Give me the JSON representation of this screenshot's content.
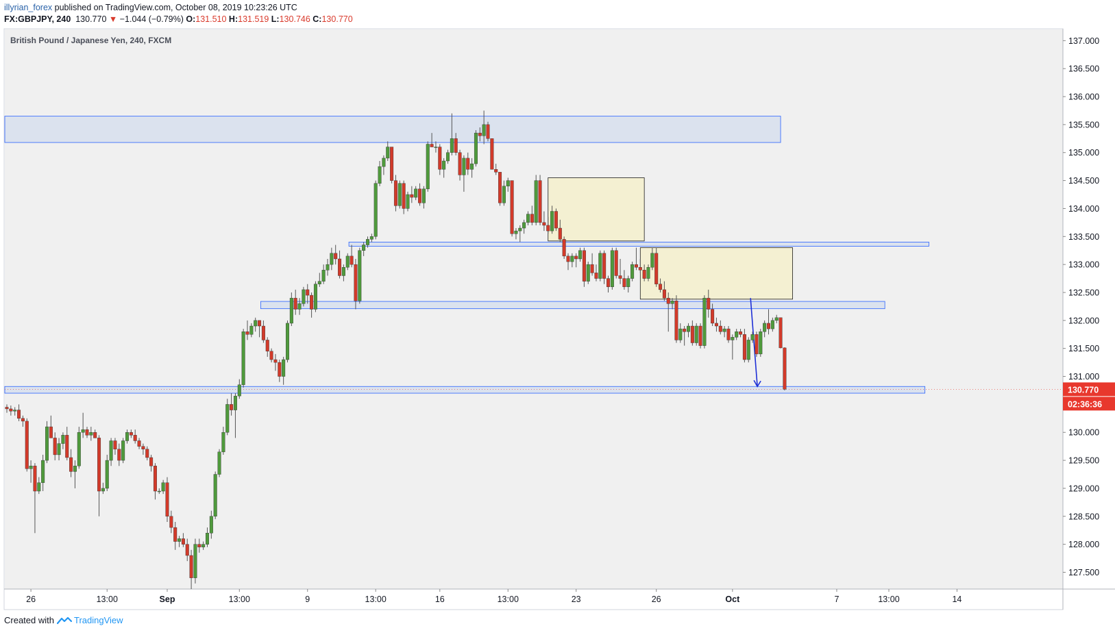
{
  "header": {
    "author": "illyrian_forex",
    "published_text": "published on TradingView.com, October 08, 2019 10:23:26 UTC",
    "symbol": "FX:GBPJPY, 240",
    "last": "130.770",
    "change_arrow": "▼",
    "change": "−1.044 (−0.79%)",
    "o_label": "O:",
    "o_value": "131.510",
    "h_label": "H:",
    "h_value": "131.519",
    "l_label": "L:",
    "l_value": "130.746",
    "c_label": "C:",
    "c_value": "130.770"
  },
  "footer": {
    "created_with": "Created with",
    "brand": "TradingView",
    "logo_icon": "tradingview-logo-icon"
  },
  "colors": {
    "up": "#53b987",
    "down": "#eb4d5c",
    "up_body": "#4f9a3c",
    "down_body": "#d23a2a",
    "zone_blue": "#2962ff",
    "box_yellow": "#f5f0c8",
    "arrow": "#1e2fd6",
    "price_tag": "#e8382d"
  },
  "chart_data": {
    "type": "candlestick",
    "title": "British Pound / Japanese Yen, 240, FXCM",
    "ylim": [
      127.2,
      137.2
    ],
    "y_ticks": [
      "137.000",
      "136.500",
      "136.000",
      "135.500",
      "135.000",
      "134.500",
      "134.000",
      "133.500",
      "133.000",
      "132.500",
      "132.000",
      "131.500",
      "131.000",
      "130.500",
      "130.000",
      "129.500",
      "129.000",
      "128.500",
      "128.000",
      "127.500"
    ],
    "x_ticks": [
      "26",
      "13:00",
      "Sep",
      "13:00",
      "9",
      "13:00",
      "16",
      "13:00",
      "23",
      "26",
      "Oct",
      "7",
      "13:00",
      "14"
    ],
    "last_price": "130.770",
    "countdown": "02:36:36",
    "zones": [
      {
        "name": "resistance-zone-top",
        "low": 135.18,
        "high": 135.65
      },
      {
        "name": "zone-133-4",
        "low": 133.33,
        "high": 133.4
      },
      {
        "name": "zone-132-3",
        "low": 132.21,
        "high": 132.34
      },
      {
        "name": "support-zone-130-8",
        "low": 130.7,
        "high": 130.82
      }
    ],
    "boxes": [
      {
        "name": "consolidation-box-1",
        "low": 133.42,
        "high": 134.55
      },
      {
        "name": "consolidation-box-2",
        "low": 132.38,
        "high": 133.3
      }
    ],
    "candles": [
      [
        130.45,
        130.5,
        130.35,
        130.42
      ],
      [
        130.42,
        130.48,
        130.3,
        130.38
      ],
      [
        130.38,
        130.45,
        130.3,
        130.4
      ],
      [
        130.4,
        130.5,
        130.2,
        130.25
      ],
      [
        130.25,
        130.3,
        130.1,
        130.2
      ],
      [
        130.2,
        130.25,
        129.3,
        129.35
      ],
      [
        129.35,
        129.5,
        129.1,
        129.4
      ],
      [
        129.4,
        129.45,
        128.2,
        128.95
      ],
      [
        128.95,
        129.2,
        128.9,
        129.1
      ],
      [
        129.1,
        129.6,
        128.95,
        129.5
      ],
      [
        129.5,
        130.2,
        129.45,
        130.1
      ],
      [
        130.1,
        130.3,
        129.9,
        129.9
      ],
      [
        129.9,
        130.0,
        129.5,
        129.6
      ],
      [
        129.6,
        129.9,
        129.5,
        129.8
      ],
      [
        129.8,
        130.0,
        129.7,
        129.95
      ],
      [
        129.95,
        130.1,
        129.5,
        129.55
      ],
      [
        129.55,
        129.7,
        129.2,
        129.3
      ],
      [
        129.3,
        129.5,
        129.0,
        129.4
      ],
      [
        129.4,
        130.1,
        129.35,
        130.0
      ],
      [
        130.0,
        130.35,
        129.9,
        130.05
      ],
      [
        130.05,
        130.1,
        129.9,
        129.95
      ],
      [
        129.95,
        130.1,
        129.85,
        130.0
      ],
      [
        130.0,
        130.05,
        129.9,
        129.9
      ],
      [
        129.9,
        129.95,
        128.5,
        128.95
      ],
      [
        128.95,
        129.1,
        128.9,
        129.0
      ],
      [
        129.0,
        129.6,
        128.95,
        129.5
      ],
      [
        129.5,
        129.9,
        129.4,
        129.85
      ],
      [
        129.85,
        129.9,
        129.6,
        129.7
      ],
      [
        129.7,
        129.8,
        129.4,
        129.5
      ],
      [
        129.5,
        129.9,
        129.45,
        129.85
      ],
      [
        129.85,
        130.05,
        129.8,
        130.0
      ],
      [
        130.0,
        130.05,
        129.9,
        129.95
      ],
      [
        129.95,
        130.05,
        129.8,
        129.85
      ],
      [
        129.85,
        129.9,
        129.7,
        129.75
      ],
      [
        129.75,
        129.8,
        129.6,
        129.7
      ],
      [
        129.7,
        129.75,
        129.5,
        129.55
      ],
      [
        129.55,
        129.6,
        129.3,
        129.4
      ],
      [
        129.4,
        129.45,
        128.8,
        128.95
      ],
      [
        128.95,
        129.0,
        128.9,
        128.95
      ],
      [
        128.95,
        129.15,
        128.9,
        129.1
      ],
      [
        129.1,
        129.2,
        128.4,
        128.5
      ],
      [
        128.5,
        128.6,
        128.2,
        128.3
      ],
      [
        128.3,
        128.4,
        127.9,
        128.05
      ],
      [
        128.05,
        128.15,
        127.95,
        128.1
      ],
      [
        128.1,
        128.2,
        127.95,
        128.0
      ],
      [
        128.0,
        128.1,
        127.7,
        127.8
      ],
      [
        127.8,
        127.9,
        127.2,
        127.4
      ],
      [
        127.4,
        128.1,
        127.3,
        128.0
      ],
      [
        128.0,
        128.1,
        127.85,
        127.95
      ],
      [
        127.95,
        128.05,
        127.9,
        128.0
      ],
      [
        128.0,
        128.3,
        127.95,
        128.2
      ],
      [
        128.2,
        128.6,
        128.1,
        128.5
      ],
      [
        128.5,
        129.3,
        128.45,
        129.25
      ],
      [
        129.25,
        129.7,
        129.2,
        129.65
      ],
      [
        129.65,
        130.1,
        129.6,
        130.0
      ],
      [
        130.0,
        130.6,
        129.95,
        130.5
      ],
      [
        130.5,
        130.7,
        130.3,
        130.4
      ],
      [
        130.4,
        130.7,
        129.9,
        130.65
      ],
      [
        130.65,
        130.95,
        130.6,
        130.85
      ],
      [
        130.85,
        131.85,
        130.8,
        131.8
      ],
      [
        131.8,
        132.0,
        131.65,
        131.75
      ],
      [
        131.75,
        131.95,
        131.7,
        131.9
      ],
      [
        131.9,
        132.05,
        131.8,
        132.0
      ],
      [
        132.0,
        132.0,
        131.7,
        131.9
      ],
      [
        131.9,
        132.0,
        131.6,
        131.65
      ],
      [
        131.65,
        131.7,
        131.35,
        131.45
      ],
      [
        131.45,
        131.5,
        131.25,
        131.3
      ],
      [
        131.3,
        131.4,
        131.1,
        131.25
      ],
      [
        131.25,
        131.3,
        130.9,
        131.0
      ],
      [
        131.0,
        131.35,
        130.85,
        131.3
      ],
      [
        131.3,
        132.0,
        131.25,
        131.95
      ],
      [
        131.95,
        132.5,
        131.9,
        132.4
      ],
      [
        132.4,
        132.55,
        132.1,
        132.2
      ],
      [
        132.2,
        132.4,
        132.1,
        132.3
      ],
      [
        132.3,
        132.6,
        132.25,
        132.55
      ],
      [
        132.55,
        132.65,
        132.3,
        132.45
      ],
      [
        132.45,
        132.5,
        132.05,
        132.2
      ],
      [
        132.2,
        132.7,
        132.15,
        132.65
      ],
      [
        132.65,
        132.85,
        132.6,
        132.7
      ],
      [
        132.7,
        133.0,
        132.65,
        132.9
      ],
      [
        132.9,
        133.1,
        132.8,
        133.0
      ],
      [
        133.0,
        133.3,
        132.9,
        133.2
      ],
      [
        133.2,
        133.35,
        133.0,
        133.1
      ],
      [
        133.1,
        133.25,
        132.75,
        132.8
      ],
      [
        132.8,
        133.0,
        132.7,
        132.95
      ],
      [
        132.95,
        133.2,
        132.9,
        133.15
      ],
      [
        133.15,
        133.35,
        132.95,
        133.0
      ],
      [
        133.0,
        133.1,
        132.2,
        132.35
      ],
      [
        132.35,
        133.3,
        132.3,
        133.25
      ],
      [
        133.25,
        133.4,
        133.15,
        133.35
      ],
      [
        133.35,
        133.5,
        133.3,
        133.45
      ],
      [
        133.45,
        133.55,
        133.4,
        133.5
      ],
      [
        133.5,
        134.5,
        133.45,
        134.45
      ],
      [
        134.45,
        134.85,
        134.4,
        134.75
      ],
      [
        134.75,
        134.95,
        134.6,
        134.9
      ],
      [
        134.9,
        135.2,
        134.85,
        135.1
      ],
      [
        135.1,
        135.1,
        134.45,
        134.5
      ],
      [
        134.5,
        134.6,
        133.95,
        134.05
      ],
      [
        134.05,
        134.5,
        134.0,
        134.45
      ],
      [
        134.45,
        134.5,
        133.9,
        134.0
      ],
      [
        134.0,
        134.3,
        133.95,
        134.25
      ],
      [
        134.25,
        134.4,
        134.1,
        134.2
      ],
      [
        134.2,
        134.4,
        134.15,
        134.35
      ],
      [
        134.35,
        134.45,
        134.05,
        134.1
      ],
      [
        134.1,
        134.4,
        134.0,
        134.35
      ],
      [
        134.35,
        135.2,
        134.3,
        135.15
      ],
      [
        135.15,
        135.35,
        135.1,
        135.1
      ],
      [
        135.1,
        135.2,
        135.0,
        135.1
      ],
      [
        135.1,
        135.15,
        134.6,
        134.7
      ],
      [
        134.7,
        134.9,
        134.55,
        134.85
      ],
      [
        134.85,
        135.05,
        134.8,
        135.0
      ],
      [
        135.0,
        135.7,
        134.95,
        135.25
      ],
      [
        135.25,
        135.35,
        134.95,
        135.0
      ],
      [
        135.0,
        135.05,
        134.5,
        134.6
      ],
      [
        134.6,
        134.95,
        134.3,
        134.9
      ],
      [
        134.9,
        135.0,
        134.6,
        134.7
      ],
      [
        134.7,
        134.9,
        134.55,
        134.8
      ],
      [
        134.8,
        135.4,
        134.75,
        135.35
      ],
      [
        135.35,
        135.45,
        135.2,
        135.3
      ],
      [
        135.3,
        135.75,
        135.15,
        135.5
      ],
      [
        135.5,
        135.55,
        135.2,
        135.25
      ],
      [
        135.25,
        135.25,
        134.7,
        134.7
      ],
      [
        134.7,
        134.8,
        134.6,
        134.65
      ],
      [
        134.65,
        134.65,
        134.05,
        134.1
      ],
      [
        134.1,
        134.5,
        134.05,
        134.4
      ],
      [
        134.4,
        134.55,
        134.3,
        134.5
      ],
      [
        134.5,
        134.5,
        133.5,
        133.55
      ],
      [
        133.55,
        133.65,
        133.45,
        133.6
      ],
      [
        133.6,
        133.7,
        133.4,
        133.65
      ],
      [
        133.65,
        133.8,
        133.55,
        133.75
      ],
      [
        133.75,
        133.95,
        133.7,
        133.9
      ],
      [
        133.9,
        134.05,
        133.7,
        133.75
      ],
      [
        133.75,
        134.6,
        133.7,
        134.5
      ],
      [
        134.5,
        134.6,
        133.7,
        133.75
      ],
      [
        133.75,
        133.95,
        133.6,
        133.7
      ],
      [
        133.7,
        133.85,
        133.55,
        133.6
      ],
      [
        133.6,
        134.05,
        133.55,
        133.95
      ],
      [
        133.95,
        134.0,
        133.6,
        133.65
      ],
      [
        133.65,
        133.8,
        133.4,
        133.45
      ],
      [
        133.45,
        133.5,
        133.1,
        133.15
      ],
      [
        133.15,
        133.2,
        132.9,
        133.05
      ],
      [
        133.05,
        133.2,
        132.95,
        133.15
      ],
      [
        133.15,
        133.2,
        132.95,
        133.1
      ],
      [
        133.1,
        133.3,
        133.05,
        133.25
      ],
      [
        133.25,
        133.3,
        132.6,
        132.7
      ],
      [
        132.7,
        133.05,
        132.65,
        133.0
      ],
      [
        133.0,
        133.2,
        132.8,
        132.85
      ],
      [
        132.85,
        133.0,
        132.7,
        132.75
      ],
      [
        132.75,
        133.25,
        132.7,
        133.2
      ],
      [
        133.2,
        133.25,
        132.65,
        132.75
      ],
      [
        132.75,
        132.8,
        132.5,
        132.6
      ],
      [
        132.6,
        133.3,
        132.55,
        133.25
      ],
      [
        133.25,
        133.3,
        132.75,
        132.8
      ],
      [
        132.8,
        133.1,
        132.65,
        132.75
      ],
      [
        132.75,
        132.9,
        132.55,
        132.6
      ],
      [
        132.6,
        132.8,
        132.5,
        132.75
      ],
      [
        132.75,
        133.05,
        132.7,
        133.0
      ],
      [
        133.0,
        133.3,
        132.9,
        132.95
      ],
      [
        132.95,
        133.1,
        132.85,
        132.9
      ],
      [
        132.9,
        133.0,
        132.7,
        132.75
      ],
      [
        132.75,
        133.0,
        132.7,
        132.95
      ],
      [
        132.95,
        133.3,
        132.9,
        133.2
      ],
      [
        133.2,
        133.3,
        132.6,
        132.65
      ],
      [
        132.65,
        132.75,
        132.5,
        132.55
      ],
      [
        132.55,
        132.7,
        132.35,
        132.4
      ],
      [
        132.4,
        132.5,
        131.8,
        132.3
      ],
      [
        132.3,
        132.4,
        132.2,
        132.35
      ],
      [
        132.35,
        132.45,
        131.6,
        131.65
      ],
      [
        131.65,
        131.95,
        131.6,
        131.85
      ],
      [
        131.85,
        131.9,
        131.55,
        131.8
      ],
      [
        131.8,
        131.95,
        131.7,
        131.9
      ],
      [
        131.9,
        132.0,
        131.55,
        131.6
      ],
      [
        131.6,
        131.95,
        131.55,
        131.9
      ],
      [
        131.9,
        131.95,
        131.5,
        131.55
      ],
      [
        131.55,
        132.45,
        131.5,
        132.4
      ],
      [
        132.4,
        132.55,
        132.05,
        132.2
      ],
      [
        132.2,
        132.3,
        131.9,
        131.95
      ],
      [
        131.95,
        132.05,
        131.8,
        131.9
      ],
      [
        131.9,
        132.0,
        131.75,
        131.8
      ],
      [
        131.8,
        131.9,
        131.7,
        131.85
      ],
      [
        131.85,
        131.9,
        131.6,
        131.65
      ],
      [
        131.65,
        131.75,
        131.3,
        131.7
      ],
      [
        131.7,
        131.85,
        131.65,
        131.8
      ],
      [
        131.8,
        131.85,
        131.7,
        131.75
      ],
      [
        131.75,
        131.85,
        131.25,
        131.3
      ],
      [
        131.3,
        131.7,
        131.25,
        131.65
      ],
      [
        131.65,
        131.8,
        131.6,
        131.75
      ],
      [
        131.75,
        131.8,
        131.35,
        131.4
      ],
      [
        131.4,
        131.85,
        131.35,
        131.8
      ],
      [
        131.8,
        132.0,
        131.7,
        131.95
      ],
      [
        131.95,
        132.2,
        131.75,
        131.85
      ],
      [
        131.85,
        132.05,
        131.8,
        132.0
      ],
      [
        132.0,
        132.1,
        131.95,
        132.05
      ],
      [
        132.05,
        132.05,
        131.5,
        131.51
      ],
      [
        131.51,
        131.52,
        130.75,
        130.77
      ]
    ]
  }
}
